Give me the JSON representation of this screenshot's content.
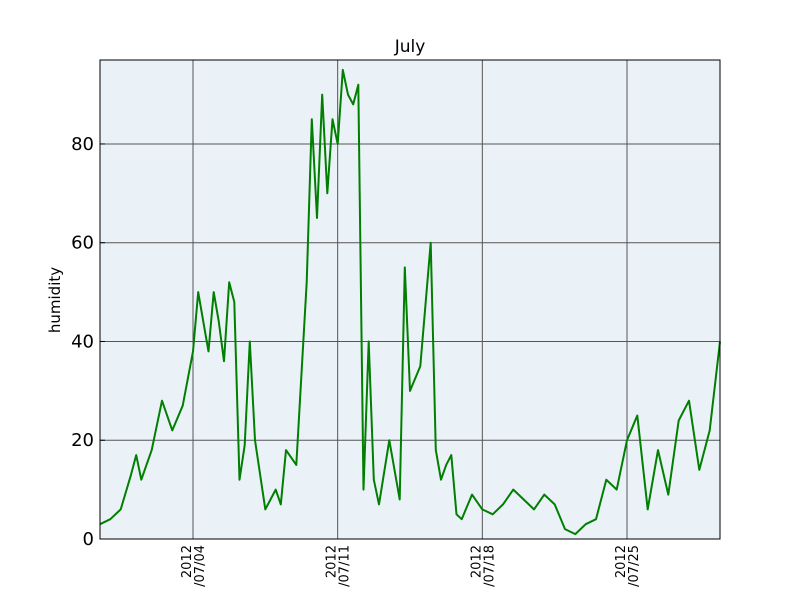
{
  "chart_data": {
    "type": "line",
    "title": "July",
    "xlabel": "",
    "ylabel": "humidity",
    "xlim": [
      "2012-06-29T12:00",
      "2012-07-29T12:00"
    ],
    "ylim": [
      0,
      97
    ],
    "yticks": [
      0,
      20,
      40,
      60,
      80
    ],
    "xticks": [
      {
        "date": "2012-07-04",
        "line1": "2012",
        "line2": "/07/04"
      },
      {
        "date": "2012-07-11",
        "line1": "2012",
        "line2": "/07/11"
      },
      {
        "date": "2012-07-18",
        "line1": "2012",
        "line2": "/07/18"
      },
      {
        "date": "2012-07-25",
        "line1": "2012",
        "line2": "/07/25"
      }
    ],
    "grid": true,
    "colors": {
      "line": "#007f00",
      "plot_bg": "#eaf2f8",
      "grid": "#555555"
    },
    "series": [
      {
        "name": "",
        "x": [
          "2012-06-29T12:00",
          "2012-06-30T00:00",
          "2012-06-30T12:00",
          "2012-07-01T00:00",
          "2012-07-01T06:00",
          "2012-07-01T12:00",
          "2012-07-02T00:00",
          "2012-07-02T12:00",
          "2012-07-03T00:00",
          "2012-07-03T12:00",
          "2012-07-04T00:00",
          "2012-07-04T06:00",
          "2012-07-04T12:00",
          "2012-07-04T18:00",
          "2012-07-05T00:00",
          "2012-07-05T06:00",
          "2012-07-05T12:00",
          "2012-07-05T18:00",
          "2012-07-06T00:00",
          "2012-07-06T06:00",
          "2012-07-06T12:00",
          "2012-07-06T18:00",
          "2012-07-07T00:00",
          "2012-07-07T12:00",
          "2012-07-08T00:00",
          "2012-07-08T06:00",
          "2012-07-08T12:00",
          "2012-07-09T00:00",
          "2012-07-09T12:00",
          "2012-07-09T18:00",
          "2012-07-10T00:00",
          "2012-07-10T06:00",
          "2012-07-10T12:00",
          "2012-07-10T18:00",
          "2012-07-11T00:00",
          "2012-07-11T06:00",
          "2012-07-11T12:00",
          "2012-07-11T18:00",
          "2012-07-12T00:00",
          "2012-07-12T06:00",
          "2012-07-12T12:00",
          "2012-07-12T18:00",
          "2012-07-13T00:00",
          "2012-07-13T12:00",
          "2012-07-14T00:00",
          "2012-07-14T06:00",
          "2012-07-14T12:00",
          "2012-07-15T00:00",
          "2012-07-15T12:00",
          "2012-07-15T18:00",
          "2012-07-16T00:00",
          "2012-07-16T06:00",
          "2012-07-16T12:00",
          "2012-07-16T18:00",
          "2012-07-17T00:00",
          "2012-07-17T12:00",
          "2012-07-18T00:00",
          "2012-07-18T12:00",
          "2012-07-19T00:00",
          "2012-07-19T12:00",
          "2012-07-20T00:00",
          "2012-07-20T12:00",
          "2012-07-21T00:00",
          "2012-07-21T12:00",
          "2012-07-22T00:00",
          "2012-07-22T12:00",
          "2012-07-23T00:00",
          "2012-07-23T12:00",
          "2012-07-24T00:00",
          "2012-07-24T12:00",
          "2012-07-25T00:00",
          "2012-07-25T12:00",
          "2012-07-26T00:00",
          "2012-07-26T12:00",
          "2012-07-27T00:00",
          "2012-07-27T12:00",
          "2012-07-28T00:00",
          "2012-07-28T12:00",
          "2012-07-29T00:00",
          "2012-07-29T12:00"
        ],
        "y": [
          3,
          4,
          6,
          13,
          17,
          12,
          18,
          28,
          22,
          27,
          38,
          50,
          44,
          38,
          50,
          44,
          36,
          52,
          48,
          12,
          19,
          40,
          20,
          6,
          10,
          7,
          18,
          15,
          52,
          85,
          65,
          90,
          70,
          85,
          80,
          95,
          90,
          88,
          92,
          10,
          40,
          12,
          7,
          20,
          8,
          55,
          30,
          35,
          60,
          18,
          12,
          15,
          17,
          5,
          4,
          9,
          6,
          5,
          7,
          10,
          8,
          6,
          9,
          7,
          2,
          1,
          3,
          4,
          12,
          10,
          20,
          25,
          6,
          18,
          9,
          24,
          28,
          14,
          22,
          40
        ]
      }
    ]
  }
}
